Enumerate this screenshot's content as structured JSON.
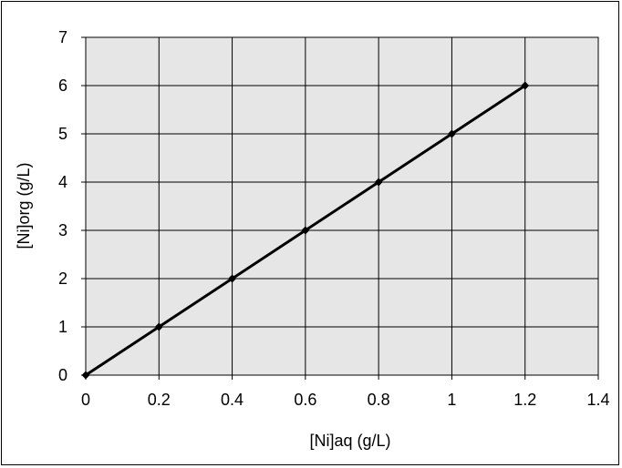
{
  "chart_data": {
    "type": "line",
    "title": "",
    "xlabel": "[Ni]aq (g/L)",
    "ylabel": "[Ni]org (g/L)",
    "xlim": [
      0,
      1.4
    ],
    "ylim": [
      0,
      7
    ],
    "x_ticks": [
      "0",
      "0.2",
      "0.4",
      "0.6",
      "0.8",
      "1",
      "1.2",
      "1.4"
    ],
    "y_ticks": [
      "0",
      "1",
      "2",
      "3",
      "4",
      "5",
      "6",
      "7"
    ],
    "grid": true,
    "legend": "none",
    "plot_background": "#e6e6e6",
    "series": [
      {
        "color": "#000000",
        "marker": "diamond",
        "x": [
          0,
          0.2,
          0.4,
          0.6,
          0.8,
          1.0,
          1.2
        ],
        "y": [
          0,
          1,
          2,
          3,
          4,
          5,
          6
        ]
      }
    ]
  }
}
